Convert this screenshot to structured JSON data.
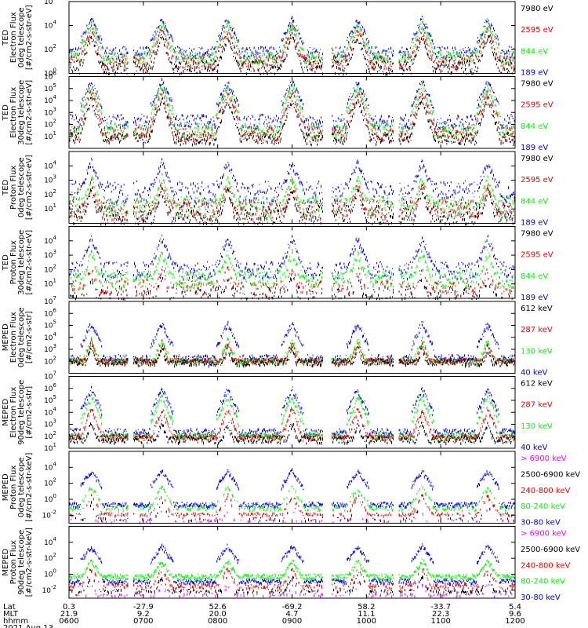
{
  "colors": {
    "blue": "#0000ff",
    "red": "#ff0000",
    "green": "#00ff00",
    "black": "#000000",
    "magenta": "#ff00ff"
  },
  "chart_data": [
    {
      "type": "line",
      "instrument": "TED",
      "ylabel": [
        "TED",
        "Electron Flux",
        "0deg telescope",
        "[#/cm2-s-str-eV]"
      ],
      "ylog": [
        0,
        6
      ],
      "yticks": [
        {
          "exp": 0,
          "text": "10"
        },
        {
          "exp": 2,
          "text": "10"
        },
        {
          "exp": 4,
          "text": "10"
        },
        {
          "exp": 6,
          "text": "10"
        }
      ],
      "legend": [
        {
          "text": "7980 eV",
          "color": "black"
        },
        {
          "text": "2595 eV",
          "color": "red"
        },
        {
          "text": "844 eV",
          "color": "green"
        },
        {
          "text": "189 eV",
          "color": "blue"
        }
      ],
      "series": [
        {
          "color": "blue",
          "base": 1.8,
          "noise": 0.5,
          "peak": 4.6,
          "gap": 0
        },
        {
          "color": "green",
          "base": 1.4,
          "noise": 0.5,
          "peak": 4.2,
          "gap": 0
        },
        {
          "color": "red",
          "base": 1.0,
          "noise": 0.6,
          "peak": 3.8,
          "gap": 0
        },
        {
          "color": "black",
          "base": 0.6,
          "noise": 0.6,
          "peak": 3.2,
          "gap": 0
        }
      ]
    },
    {
      "type": "line",
      "instrument": "TED",
      "ylabel": [
        "TED",
        "Electron Flux",
        "30deg telescope",
        "[#/cm2-s-str-eV]"
      ],
      "ylog": [
        0,
        6
      ],
      "yticks": [
        {
          "exp": 1,
          "text": "10"
        },
        {
          "exp": 2,
          "text": "10"
        },
        {
          "exp": 3,
          "text": "10"
        },
        {
          "exp": 4,
          "text": "10"
        },
        {
          "exp": 5,
          "text": "10"
        },
        {
          "exp": 6,
          "text": "10"
        }
      ],
      "legend": [
        {
          "text": "7980 eV",
          "color": "black"
        },
        {
          "text": "2595 eV",
          "color": "red"
        },
        {
          "text": "844 eV",
          "color": "green"
        },
        {
          "text": "189 eV",
          "color": "blue"
        }
      ],
      "series": [
        {
          "color": "blue",
          "base": 2.3,
          "noise": 0.6,
          "peak": 5.6,
          "gap": 0
        },
        {
          "color": "green",
          "base": 1.6,
          "noise": 0.6,
          "peak": 5.2,
          "gap": 0
        },
        {
          "color": "red",
          "base": 1.3,
          "noise": 0.6,
          "peak": 4.8,
          "gap": 0
        },
        {
          "color": "black",
          "base": 0.9,
          "noise": 0.5,
          "peak": 4.2,
          "gap": 0
        }
      ]
    },
    {
      "type": "line",
      "instrument": "TED",
      "ylabel": [
        "TED",
        "Proton Flux",
        "0deg telescope",
        "[#/cm2-s-str-eV]"
      ],
      "ylog": [
        0,
        5
      ],
      "yticks": [
        {
          "exp": 1,
          "text": "10"
        },
        {
          "exp": 2,
          "text": "10"
        },
        {
          "exp": 3,
          "text": "10"
        },
        {
          "exp": 4,
          "text": "10"
        }
      ],
      "legend": [
        {
          "text": "7980 eV",
          "color": "black"
        },
        {
          "text": "2595 eV",
          "color": "red"
        },
        {
          "text": "844 eV",
          "color": "green"
        },
        {
          "text": "189 eV",
          "color": "blue"
        }
      ],
      "series": [
        {
          "color": "blue",
          "base": 2.2,
          "noise": 0.8,
          "peak": 4.3,
          "gap": 0
        },
        {
          "color": "green",
          "base": 1.2,
          "noise": 0.7,
          "peak": 3.2,
          "gap": 0
        },
        {
          "color": "red",
          "base": 1.0,
          "noise": 0.7,
          "peak": 2.8,
          "gap": 0
        },
        {
          "color": "black",
          "base": 0.6,
          "noise": 0.7,
          "peak": 2.4,
          "gap": 0
        }
      ]
    },
    {
      "type": "line",
      "instrument": "TED",
      "ylabel": [
        "TED",
        "Proton Flux",
        "30deg telescope",
        "[#/cm2-s-str-eV]"
      ],
      "ylog": [
        0,
        5
      ],
      "yticks": [
        {
          "exp": 1,
          "text": "10"
        },
        {
          "exp": 2,
          "text": "10"
        },
        {
          "exp": 3,
          "text": "10"
        },
        {
          "exp": 4,
          "text": "10"
        }
      ],
      "legend": [
        {
          "text": "7980 eV",
          "color": "black"
        },
        {
          "text": "2595 eV",
          "color": "red"
        },
        {
          "text": "844 eV",
          "color": "green"
        },
        {
          "text": "189 eV",
          "color": "blue"
        }
      ],
      "series": [
        {
          "color": "blue",
          "base": 2.0,
          "noise": 0.6,
          "peak": 4.2,
          "gap": 0
        },
        {
          "color": "green",
          "base": 1.4,
          "noise": 0.6,
          "peak": 3.2,
          "gap": 0
        },
        {
          "color": "red",
          "base": 0.8,
          "noise": 0.5,
          "peak": 2.2,
          "gap": 0.4
        },
        {
          "color": "black",
          "base": 0.4,
          "noise": 0.5,
          "peak": 1.6,
          "gap": 0.5
        }
      ]
    },
    {
      "type": "line",
      "instrument": "MEPED",
      "ylabel": [
        "MEPED",
        "Electron Flux",
        "0deg telescope",
        "[#/cm2-s-str]"
      ],
      "ylog": [
        1,
        7
      ],
      "yticks": [
        {
          "exp": 2,
          "text": "10"
        },
        {
          "exp": 3,
          "text": "10"
        },
        {
          "exp": 4,
          "text": "10"
        },
        {
          "exp": 5,
          "text": "10"
        },
        {
          "exp": 6,
          "text": "10"
        },
        {
          "exp": 7,
          "text": "10"
        }
      ],
      "legend": [
        {
          "text": "612 keV",
          "color": "black"
        },
        {
          "text": "287 keV",
          "color": "red"
        },
        {
          "text": "130 keV",
          "color": "green"
        },
        {
          "text": "40 keV",
          "color": "blue"
        }
      ],
      "series": [
        {
          "color": "blue",
          "base": 2.3,
          "noise": 0.3,
          "peak": 5.2,
          "gap": 0
        },
        {
          "color": "green",
          "base": 2.1,
          "noise": 0.2,
          "peak": 3.8,
          "gap": 0
        },
        {
          "color": "red",
          "base": 2.1,
          "noise": 0.2,
          "peak": 3.6,
          "gap": 0
        },
        {
          "color": "black",
          "base": 2.0,
          "noise": 0.3,
          "peak": 3.2,
          "gap": 0
        }
      ]
    },
    {
      "type": "line",
      "instrument": "MEPED",
      "ylabel": [
        "MEPED",
        "Electron Flux",
        "90deg telescope",
        "[#/cm2-s-str]"
      ],
      "ylog": [
        1,
        7
      ],
      "yticks": [
        {
          "exp": 1,
          "text": "10"
        },
        {
          "exp": 2,
          "text": "10"
        },
        {
          "exp": 3,
          "text": "10"
        },
        {
          "exp": 4,
          "text": "10"
        },
        {
          "exp": 5,
          "text": "10"
        },
        {
          "exp": 6,
          "text": "10"
        },
        {
          "exp": 7,
          "text": "10"
        }
      ],
      "legend": [
        {
          "text": "612 keV",
          "color": "black"
        },
        {
          "text": "287 keV",
          "color": "red"
        },
        {
          "text": "130 keV",
          "color": "green"
        },
        {
          "text": "40 keV",
          "color": "blue"
        }
      ],
      "series": [
        {
          "color": "blue",
          "base": 2.4,
          "noise": 0.3,
          "peak": 6.0,
          "gap": 0
        },
        {
          "color": "green",
          "base": 2.1,
          "noise": 0.2,
          "peak": 5.4,
          "gap": 0
        },
        {
          "color": "red",
          "base": 2.0,
          "noise": 0.2,
          "peak": 4.4,
          "gap": 0
        },
        {
          "color": "black",
          "base": 1.8,
          "noise": 0.3,
          "peak": 3.2,
          "gap": 0
        }
      ]
    },
    {
      "type": "line",
      "instrument": "MEPED",
      "ylabel": [
        "MEPED",
        "Proton Flux",
        "0deg telescope",
        "[#/cm2-s-str-keV]"
      ],
      "ylog": [
        -3,
        6
      ],
      "yticks": [
        {
          "exp": -2,
          "text": "10"
        },
        {
          "exp": 0,
          "text": "10"
        },
        {
          "exp": 2,
          "text": "10"
        },
        {
          "exp": 4,
          "text": "10"
        }
      ],
      "legend": [
        {
          "text": "> 6900 keV",
          "color": "magenta"
        },
        {
          "text": "2500-6900 keV",
          "color": "black"
        },
        {
          "text": "240-800 keV",
          "color": "red"
        },
        {
          "text": "80-240 keV",
          "color": "green"
        },
        {
          "text": "30-80 keV",
          "color": "blue"
        }
      ],
      "series": [
        {
          "color": "blue",
          "base": -0.6,
          "noise": 0.3,
          "peak": 3.6,
          "gap": 0
        },
        {
          "color": "green",
          "base": -1.0,
          "noise": 0.3,
          "peak": 1.6,
          "gap": 0.4
        },
        {
          "color": "red",
          "base": -1.8,
          "noise": 0.2,
          "peak": 0.6,
          "gap": 0.5
        },
        {
          "color": "black",
          "base": -2.4,
          "noise": 0.2,
          "peak": -0.4,
          "gap": 0.8
        },
        {
          "color": "magenta",
          "base": -2.6,
          "noise": 0.2,
          "peak": -1.2,
          "gap": 0.85
        }
      ]
    },
    {
      "type": "line",
      "instrument": "MEPED",
      "ylabel": [
        "MEPED",
        "Proton Flux",
        "90deg telescope",
        "[#/cm2-s-str-keV]"
      ],
      "ylog": [
        -3,
        6
      ],
      "yticks": [
        {
          "exp": -2,
          "text": "10"
        },
        {
          "exp": 0,
          "text": "10"
        },
        {
          "exp": 2,
          "text": "10"
        },
        {
          "exp": 4,
          "text": "10"
        }
      ],
      "legend": [
        {
          "text": "> 6900 keV",
          "color": "magenta"
        },
        {
          "text": "2500-6900 keV",
          "color": "black"
        },
        {
          "text": "240-800 keV",
          "color": "red"
        },
        {
          "text": "80-240 keV",
          "color": "green"
        },
        {
          "text": "30-80 keV",
          "color": "blue"
        }
      ],
      "series": [
        {
          "color": "blue",
          "base": -0.8,
          "noise": 0.3,
          "peak": 3.6,
          "gap": 0
        },
        {
          "color": "green",
          "base": -0.2,
          "noise": 0.3,
          "peak": 1.8,
          "gap": 0
        },
        {
          "color": "red",
          "base": -1.4,
          "noise": 0.3,
          "peak": 0.8,
          "gap": 0.4
        },
        {
          "color": "black",
          "base": -2.0,
          "noise": 0.2,
          "peak": -0.2,
          "gap": 0.6
        },
        {
          "color": "magenta",
          "base": -2.5,
          "noise": 0.2,
          "peak": -1.0,
          "gap": 0.7
        }
      ]
    }
  ],
  "orbit_axis": {
    "row_labels": [
      "Lat",
      "MLT",
      "hhmm"
    ],
    "date": "2021 Aug 13",
    "ticks": [
      {
        "lat": "0.3",
        "mlt": "21.9",
        "hhmm": "0600"
      },
      {
        "lat": "-27.9",
        "mlt": "9.2",
        "hhmm": "0700"
      },
      {
        "lat": "52.6",
        "mlt": "20.0",
        "hhmm": "0800"
      },
      {
        "lat": "-69.2",
        "mlt": "4.7",
        "hhmm": "0900"
      },
      {
        "lat": "58.2",
        "mlt": "11.1",
        "hhmm": "1000"
      },
      {
        "lat": "-33.7",
        "mlt": "22.3",
        "hhmm": "1100"
      },
      {
        "lat": "5.4",
        "mlt": "9.6",
        "hhmm": "1200"
      }
    ],
    "time_range_min": [
      0,
      360
    ],
    "pass_centers_min": [
      18,
      75,
      128,
      180,
      233,
      285,
      338
    ]
  }
}
